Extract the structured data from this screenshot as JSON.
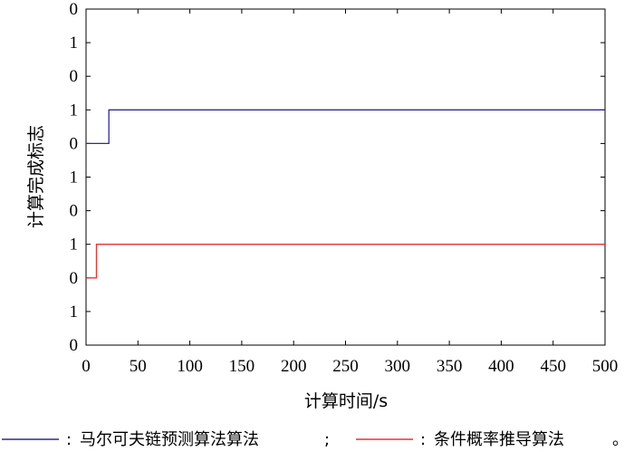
{
  "chart_data": {
    "type": "line",
    "xlabel": "计算时间/s",
    "ylabel": "计算完成标志",
    "xlim": [
      0,
      500
    ],
    "x_ticks": [
      0,
      50,
      100,
      150,
      200,
      250,
      300,
      350,
      400,
      450,
      500
    ],
    "y_tick_labels": [
      "0",
      "1",
      "0",
      "1",
      "0",
      "1",
      "0",
      "1",
      "0",
      "1",
      "0"
    ],
    "grid": false,
    "legend_placement": "bottom",
    "series": [
      {
        "name": "马尔可夫链预测算法算法",
        "legend_suffix": ";",
        "color": "#2b2b9c",
        "band_base_tick": 6,
        "x": [
          0,
          22,
          22,
          500
        ],
        "y": [
          0,
          0,
          1,
          1
        ]
      },
      {
        "name": "条件概率推导算法",
        "legend_suffix": "。",
        "color": "#e8342f",
        "band_base_tick": 2,
        "x": [
          0,
          10,
          10,
          500
        ],
        "y": [
          0,
          0,
          1,
          1
        ]
      }
    ],
    "legend": {
      "prefix": ":"
    }
  }
}
